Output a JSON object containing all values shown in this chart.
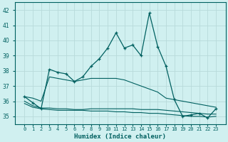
{
  "title": "",
  "xlabel": "Humidex (Indice chaleur)",
  "x": [
    0,
    1,
    2,
    3,
    4,
    5,
    6,
    7,
    8,
    9,
    10,
    11,
    12,
    13,
    14,
    15,
    16,
    17,
    18,
    19,
    20,
    21,
    22,
    23
  ],
  "main_line": [
    36.3,
    35.9,
    35.5,
    38.1,
    37.9,
    37.8,
    37.3,
    37.6,
    38.3,
    38.8,
    39.5,
    40.5,
    39.5,
    39.7,
    39.0,
    41.8,
    39.6,
    38.3,
    36.1,
    35.0,
    35.1,
    35.2,
    34.9,
    35.5
  ],
  "diag_line": [
    36.3,
    36.2,
    36.0,
    37.6,
    37.5,
    37.4,
    37.3,
    37.4,
    37.5,
    37.5,
    37.5,
    37.5,
    37.4,
    37.2,
    37.0,
    36.8,
    36.6,
    36.2,
    36.1,
    36.0,
    35.9,
    35.8,
    35.7,
    35.6
  ],
  "lower_band1": [
    36.0,
    35.7,
    35.55,
    35.55,
    35.5,
    35.5,
    35.45,
    35.45,
    35.5,
    35.5,
    35.5,
    35.5,
    35.5,
    35.5,
    35.45,
    35.45,
    35.45,
    35.4,
    35.35,
    35.3,
    35.25,
    35.2,
    35.15,
    35.15
  ],
  "lower_band2": [
    35.85,
    35.6,
    35.5,
    35.45,
    35.4,
    35.4,
    35.4,
    35.4,
    35.35,
    35.35,
    35.35,
    35.3,
    35.3,
    35.25,
    35.25,
    35.2,
    35.2,
    35.15,
    35.1,
    35.05,
    35.0,
    35.0,
    34.95,
    35.0
  ],
  "line_color": "#006060",
  "bg_color": "#d0f0f0",
  "grid_color": "#b8dada",
  "ylim": [
    34.5,
    42.5
  ],
  "yticks": [
    35,
    36,
    37,
    38,
    39,
    40,
    41,
    42
  ],
  "xtick_labels": [
    "0",
    "1",
    "2",
    "3",
    "4",
    "5",
    "6",
    "7",
    "8",
    "9",
    "10",
    "11",
    "12",
    "13",
    "14",
    "15",
    "16",
    "17",
    "18",
    "19",
    "20",
    "21",
    "22",
    "23"
  ]
}
